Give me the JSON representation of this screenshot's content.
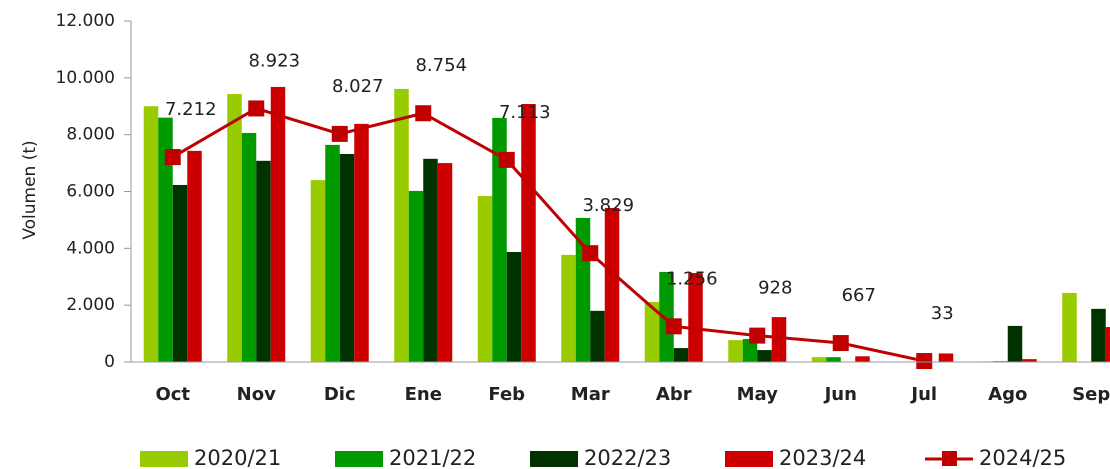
{
  "chart_data": {
    "type": "bar",
    "y_label": "Volumen (t)",
    "categories": [
      "Oct",
      "Nov",
      "Dic",
      "Ene",
      "Feb",
      "Mar",
      "Abr",
      "May",
      "Jun",
      "Jul",
      "Ago",
      "Sep"
    ],
    "ylim": [
      0,
      12000
    ],
    "yticks": [
      0,
      {
        "value": 2000,
        "label": "2.000"
      },
      {
        "value": 4000,
        "label": "4.000"
      },
      {
        "value": 6000,
        "label": "6.000"
      },
      {
        "value": 8000,
        "label": "8.000"
      },
      {
        "value": 10000,
        "label": "10.000"
      },
      {
        "value": 12000,
        "label": "12.000"
      }
    ],
    "series": [
      {
        "name": "2020/21",
        "color": "#99cc00",
        "values": [
          9000,
          9430,
          6400,
          9610,
          5840,
          3770,
          2110,
          770,
          170,
          0,
          20,
          2430
        ]
      },
      {
        "name": "2021/22",
        "color": "#009900",
        "values": [
          8600,
          8060,
          7640,
          6020,
          8590,
          5070,
          3170,
          810,
          170,
          0,
          30,
          0
        ]
      },
      {
        "name": "2022/23",
        "color": "#003300",
        "values": [
          6230,
          7080,
          7320,
          7150,
          3870,
          1800,
          490,
          420,
          0,
          0,
          1270,
          1870
        ]
      },
      {
        "name": "2023/24",
        "color": "#cc0000",
        "values": [
          7430,
          9680,
          8380,
          7000,
          9080,
          5420,
          3130,
          1580,
          200,
          300,
          100,
          1230
        ]
      },
      {
        "name": "2024/25",
        "color": "#c00000",
        "type": "line",
        "values": [
          7212,
          8923,
          8027,
          8754,
          7113,
          3829,
          1256,
          928,
          667,
          33,
          null,
          null
        ],
        "value_labels": [
          "7.212",
          "8.923",
          "8.027",
          "8.754",
          "7.113",
          "3.829",
          "1.256",
          "928",
          "667",
          "33",
          null,
          null
        ]
      }
    ]
  }
}
